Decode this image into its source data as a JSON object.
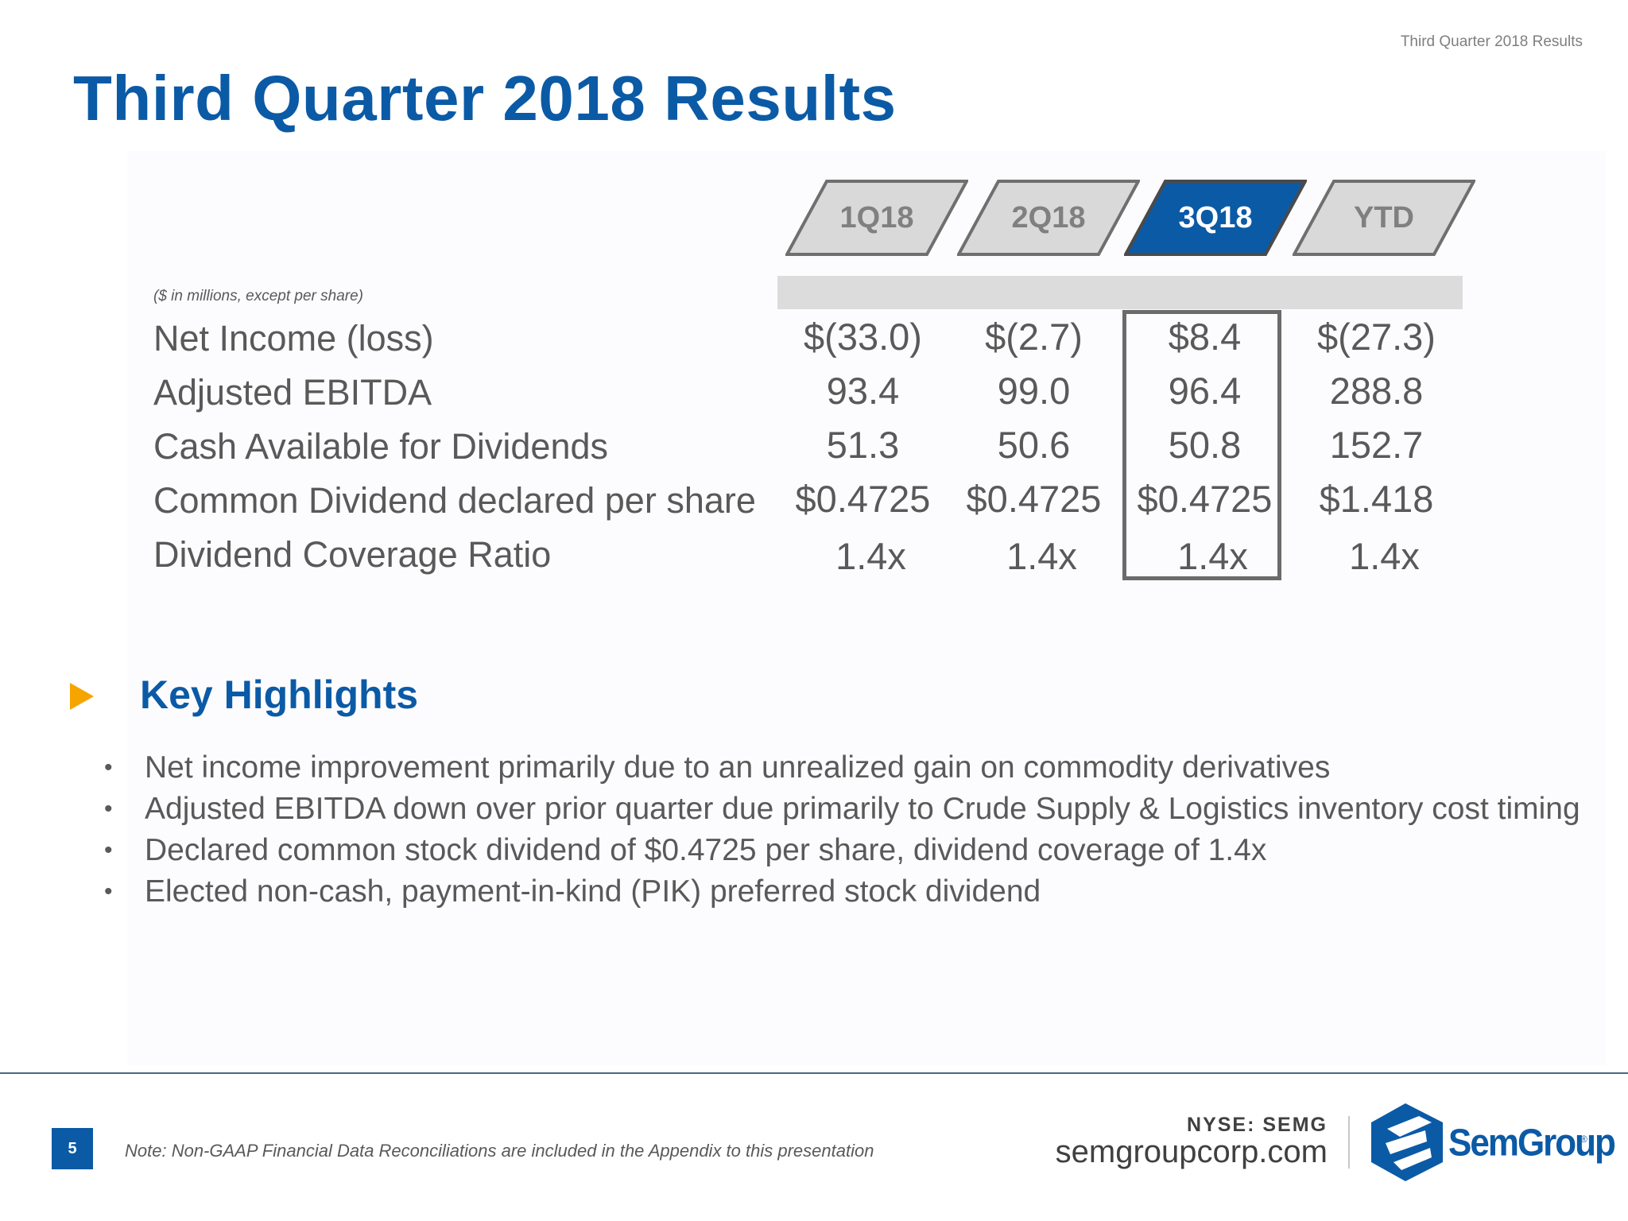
{
  "header": {
    "corner_label": "Third Quarter 2018 Results",
    "title": "Third Quarter 2018 Results"
  },
  "table": {
    "units_note": "($ in millions, except per share)",
    "tabs": [
      {
        "label": "1Q18",
        "active": false
      },
      {
        "label": "2Q18",
        "active": false
      },
      {
        "label": "3Q18",
        "active": true
      },
      {
        "label": "YTD",
        "active": false
      }
    ],
    "rows": [
      {
        "label": "Net Income (loss)",
        "values": [
          "$(33.0)",
          "$(2.7)",
          "$8.4",
          "$(27.3)"
        ]
      },
      {
        "label": "Adjusted EBITDA",
        "values": [
          "93.4",
          "99.0",
          "96.4",
          "288.8"
        ]
      },
      {
        "label": "Cash Available for Dividends",
        "values": [
          "51.3",
          "50.6",
          "50.8",
          "152.7"
        ]
      },
      {
        "label": "Common Dividend declared per share",
        "values": [
          "$0.4725",
          "$0.4725",
          "$0.4725",
          "$1.418"
        ]
      },
      {
        "label": "Dividend Coverage Ratio",
        "values": [
          "1.4x",
          "1.4x",
          "1.4x",
          "1.4x"
        ]
      }
    ],
    "highlighted_column": "3Q18"
  },
  "highlights": {
    "title": "Key Highlights",
    "items": [
      "Net income improvement primarily due to an unrealized gain on commodity derivatives",
      "Adjusted EBITDA down over prior quarter due primarily to Crude Supply & Logistics inventory cost timing",
      "Declared common stock dividend of $0.4725 per share, dividend coverage of 1.4x",
      "Elected non-cash, payment-in-kind (PIK) preferred stock dividend"
    ]
  },
  "footer": {
    "page_number": "5",
    "note": "Note:  Non-GAAP Financial Data Reconciliations are included in the Appendix to this presentation",
    "ticker": "NYSE: SEMG",
    "website": "semgroupcorp.com",
    "logo_text": "SemGroup",
    "logo_reg": "®"
  },
  "colors": {
    "brand_blue": "#0b5aa6",
    "accent_orange": "#f5a400",
    "body_gray": "#595959",
    "tab_gray": "#d9d9d9"
  }
}
